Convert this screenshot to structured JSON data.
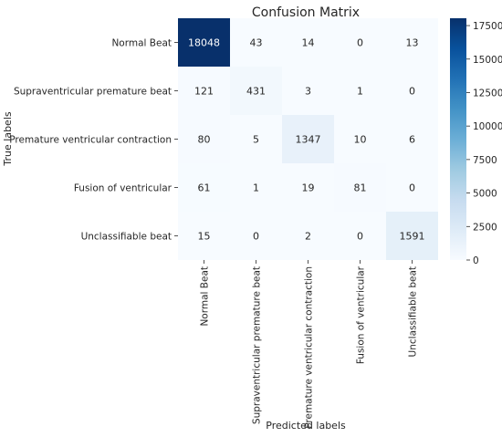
{
  "chart_data": {
    "type": "heatmap",
    "title": "Confusion Matrix",
    "xlabel": "Predicted labels",
    "ylabel": "True labels",
    "row_labels": [
      "Normal Beat",
      "Supraventricular premature beat",
      "Premature ventricular contraction",
      "Fusion of ventricular",
      "Unclassifiable beat"
    ],
    "col_labels": [
      "Normal Beat",
      "Supraventricular premature beat",
      "Premature ventricular contraction",
      "Fusion of ventricular",
      "Unclassifiable beat"
    ],
    "values": [
      [
        18048,
        43,
        14,
        0,
        13
      ],
      [
        121,
        431,
        3,
        1,
        0
      ],
      [
        80,
        5,
        1347,
        10,
        6
      ],
      [
        61,
        1,
        19,
        81,
        0
      ],
      [
        15,
        0,
        2,
        0,
        1591
      ]
    ],
    "colorbar": {
      "colormap": "Blues",
      "range": [
        0,
        18048
      ],
      "ticks": [
        0,
        2500,
        5000,
        7500,
        10000,
        12500,
        15000,
        17500
      ]
    },
    "colors": {
      "low": "#f7fbff",
      "high": "#08306b",
      "text_dark": "#262626",
      "text_light": "#ffffff"
    }
  }
}
